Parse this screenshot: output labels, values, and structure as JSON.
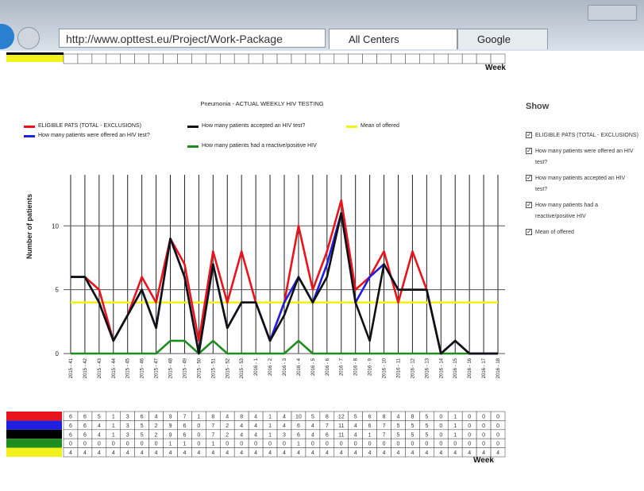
{
  "browser": {
    "url": "http://www.opttest.eu/Project/Work-Package",
    "tabs": [
      "All Centers",
      "Google"
    ]
  },
  "show_panel": {
    "title": "Show",
    "options": [
      "ELIGIBLE PATS (TOTAL - EXCLUSIONS)",
      "How many patients were offered an HIV test?",
      "How many patients accepted an HIV test?",
      "How many patients had a reactive/positive HIV",
      "Mean of offered"
    ]
  },
  "table": {
    "week_label": "Week"
  },
  "chart_data": {
    "type": "line",
    "title": "Pneumonia - ACTUAL WEEKLY HIV TESTING",
    "ylabel": "Number of patients",
    "categories": [
      "2015 - 41",
      "2015 - 42",
      "2015 - 43",
      "2015 - 44",
      "2015 - 45",
      "2015 - 46",
      "2015 - 47",
      "2015 - 48",
      "2015 - 49",
      "2015 - 50",
      "2015 - 51",
      "2015 - 52",
      "2015 - 53",
      "2016 - 1",
      "2016 - 2",
      "2016 - 3",
      "2016 - 4",
      "2016 - 5",
      "2016 - 6",
      "2016 - 7",
      "2016 - 8",
      "2016 - 9",
      "2016 - 10",
      "2016 - 11",
      "2016 - 12",
      "2016 - 13",
      "2016 - 14",
      "2016 - 15",
      "2016 - 16",
      "2016 - 17",
      "2016 - 18"
    ],
    "series": [
      {
        "name": "ELIGIBLE PATS (TOTAL - EXCLUSIONS)",
        "color": "#e8141c",
        "values": [
          6,
          6,
          5,
          1,
          3,
          6,
          4,
          9,
          7,
          1,
          8,
          4,
          8,
          4,
          1,
          4,
          10,
          5,
          8,
          12,
          5,
          6,
          8,
          4,
          8,
          5,
          0,
          1,
          0,
          0,
          0
        ]
      },
      {
        "name": "How many patients were offered an HIV test?",
        "color": "#1f1fe0",
        "values": [
          6,
          6,
          4,
          1,
          3,
          5,
          2,
          9,
          6,
          0,
          7,
          2,
          4,
          4,
          1,
          4,
          6,
          4,
          7,
          11,
          4,
          6,
          7,
          5,
          5,
          5,
          0,
          1,
          0,
          0,
          0
        ]
      },
      {
        "name": "How many patients accepted an HIV test?",
        "color": "#111111",
        "values": [
          6,
          6,
          4,
          1,
          3,
          5,
          2,
          9,
          6,
          0,
          7,
          2,
          4,
          4,
          1,
          3,
          6,
          4,
          6,
          11,
          4,
          1,
          7,
          5,
          5,
          5,
          0,
          1,
          0,
          0,
          0
        ]
      },
      {
        "name": "How many patients had a reactive/positive HIV",
        "color": "#1e8c1e",
        "values": [
          0,
          0,
          0,
          0,
          0,
          0,
          0,
          1,
          1,
          0,
          1,
          0,
          0,
          0,
          0,
          0,
          1,
          0,
          0,
          0,
          0,
          0,
          0,
          0,
          0,
          0,
          0,
          0,
          0,
          0,
          0
        ]
      },
      {
        "name": "Mean of offered",
        "color": "#f2f21a",
        "values": [
          4,
          4,
          4,
          4,
          4,
          4,
          4,
          4,
          4,
          4,
          4,
          4,
          4,
          4,
          4,
          4,
          4,
          4,
          4,
          4,
          4,
          4,
          4,
          4,
          4,
          4,
          4,
          4,
          4,
          4,
          4
        ]
      }
    ],
    "ylim": [
      0,
      14
    ],
    "yticks": [
      0,
      5,
      10
    ],
    "grid": true
  }
}
